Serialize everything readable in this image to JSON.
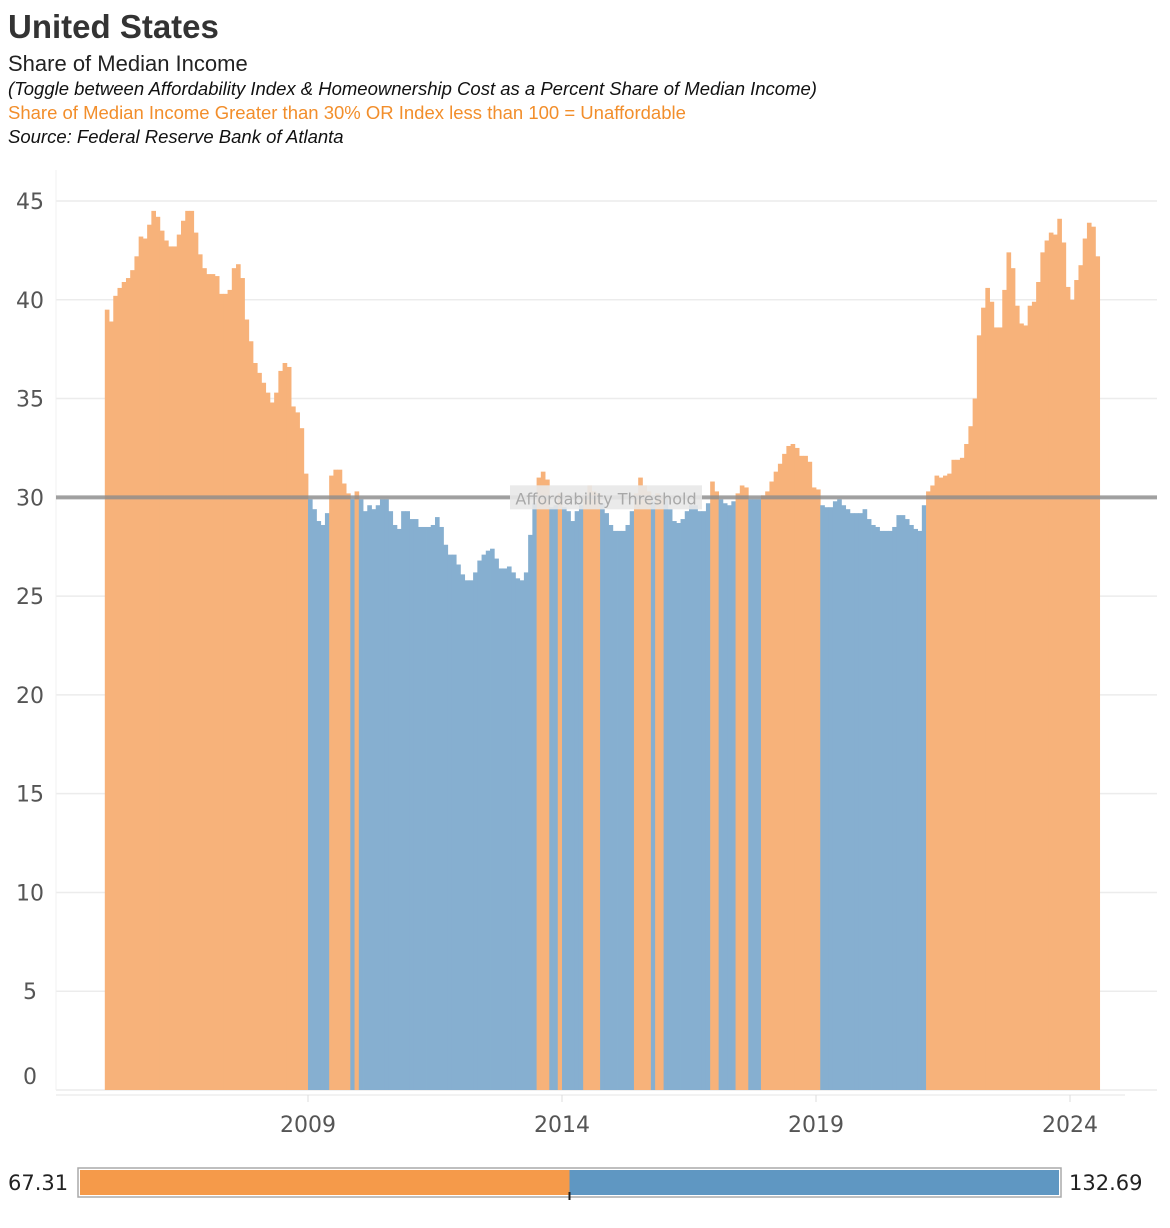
{
  "header": {
    "title": "United States",
    "subtitle": "Share of Median Income",
    "note": "(Toggle between Affordability Index & Homeownership Cost as a Percent Share of Median Income)",
    "rule": "Share of Median Income Greater than 30% OR Index less than 100  = Unaffordable",
    "source": "Source: Federal Reserve Bank of Atlanta"
  },
  "chart_data": {
    "type": "bar",
    "frequency": "monthly",
    "ylim": [
      0,
      45
    ],
    "yticks": [
      "0",
      "5",
      "10",
      "15",
      "20",
      "25",
      "30",
      "35",
      "40",
      "45"
    ],
    "xticks": [
      "2009",
      "2014",
      "2019",
      "2024"
    ],
    "grid": true,
    "threshold": {
      "value": 30,
      "label": "Affordability Threshold"
    },
    "colors": {
      "above_threshold": "#F7B27A",
      "below_threshold": "#86AFD0",
      "threshold_line": "#8C8C8C"
    },
    "series": [
      {
        "year": 2005,
        "values": [
          39.5,
          38.9,
          40.2,
          40.6,
          40.9,
          41.1,
          41.5,
          42.2,
          43.2,
          43.1,
          43.8,
          44.5
        ]
      },
      {
        "year": 2006,
        "values": [
          44.2,
          43.5,
          43.0,
          42.7,
          42.7,
          43.3,
          44.0,
          44.5,
          44.5,
          43.4,
          42.3,
          41.6
        ]
      },
      {
        "year": 2007,
        "values": [
          41.3,
          41.3,
          41.2,
          40.3,
          40.3,
          40.5,
          41.6,
          41.8,
          41.1,
          39.0,
          37.9,
          36.8
        ]
      },
      {
        "year": 2008,
        "values": [
          36.3,
          35.8,
          35.3,
          34.8,
          35.3,
          36.4,
          36.8,
          36.6,
          34.6,
          34.3,
          33.5,
          31.2
        ]
      },
      {
        "year": 2009,
        "values": [
          29.9,
          29.4,
          28.8,
          28.6,
          29.2,
          31.1,
          31.4,
          31.4,
          30.7,
          30.2,
          29.9,
          30.3
        ]
      },
      {
        "year": 2010,
        "values": [
          29.9,
          29.3,
          29.6,
          29.4,
          29.6,
          29.9,
          29.9,
          29.3,
          28.6,
          28.4,
          29.3,
          29.3
        ]
      },
      {
        "year": 2011,
        "values": [
          28.9,
          28.9,
          28.5,
          28.5,
          28.5,
          28.6,
          29.0,
          28.5,
          27.6,
          27.1,
          27.1,
          26.6
        ]
      },
      {
        "year": 2012,
        "values": [
          26.1,
          25.8,
          25.8,
          26.2,
          26.8,
          27.1,
          27.3,
          27.4,
          26.9,
          26.4,
          26.4,
          26.5
        ]
      },
      {
        "year": 2013,
        "values": [
          26.2,
          25.9,
          25.8,
          26.2,
          28.1,
          29.7,
          31.0,
          31.3,
          30.9,
          29.5,
          29.6,
          30.2
        ]
      },
      {
        "year": 2014,
        "values": [
          29.5,
          29.3,
          28.8,
          29.3,
          29.6,
          30.1,
          30.6,
          30.3,
          30.2,
          29.7,
          29.2,
          28.6
        ]
      },
      {
        "year": 2015,
        "values": [
          28.3,
          28.3,
          28.3,
          28.6,
          29.3,
          30.2,
          31.0,
          30.6,
          30.3,
          29.8,
          30.2,
          30.1
        ]
      },
      {
        "year": 2016,
        "values": [
          29.9,
          29.4,
          28.8,
          28.7,
          28.9,
          29.3,
          29.6,
          29.6,
          29.3,
          29.3,
          29.7,
          30.8
        ]
      },
      {
        "year": 2017,
        "values": [
          30.3,
          29.9,
          29.7,
          29.6,
          29.8,
          30.2,
          30.6,
          30.5,
          29.9,
          29.9,
          29.9,
          30.1
        ]
      },
      {
        "year": 2018,
        "values": [
          30.3,
          30.8,
          31.3,
          31.7,
          32.2,
          32.6,
          32.7,
          32.5,
          32.1,
          32.1,
          31.8,
          30.5
        ]
      },
      {
        "year": 2019,
        "values": [
          30.4,
          29.6,
          29.5,
          29.5,
          29.8,
          29.9,
          29.6,
          29.4,
          29.2,
          29.2,
          29.2,
          29.4
        ]
      },
      {
        "year": 2020,
        "values": [
          28.9,
          28.6,
          28.5,
          28.3,
          28.3,
          28.3,
          28.5,
          29.1,
          29.1,
          28.9,
          28.6,
          28.4
        ]
      },
      {
        "year": 2021,
        "values": [
          28.3,
          29.6,
          30.3,
          30.6,
          31.1,
          31.0,
          31.1,
          31.2,
          31.9,
          31.9,
          32.0,
          32.7
        ]
      },
      {
        "year": 2022,
        "values": [
          33.6,
          35.0,
          38.2,
          39.6,
          40.6,
          39.9,
          38.6,
          38.6,
          40.5,
          42.4,
          41.6,
          39.7
        ]
      },
      {
        "year": 2023,
        "values": [
          38.8,
          38.7,
          39.7,
          39.9,
          40.9,
          42.4,
          43.0,
          43.4,
          43.3,
          44.1,
          42.9,
          40.65
        ]
      },
      {
        "year": 2024,
        "values": [
          40.0,
          41.0,
          41.75,
          43.1,
          43.9,
          43.7,
          42.2
        ]
      }
    ]
  },
  "color_legend": {
    "min_label": "67.31",
    "max_label": "132.69",
    "midpoint": 100,
    "min": 67.31,
    "max": 132.69,
    "colors": {
      "low": "#F59A4A",
      "high": "#5F97C2"
    }
  }
}
